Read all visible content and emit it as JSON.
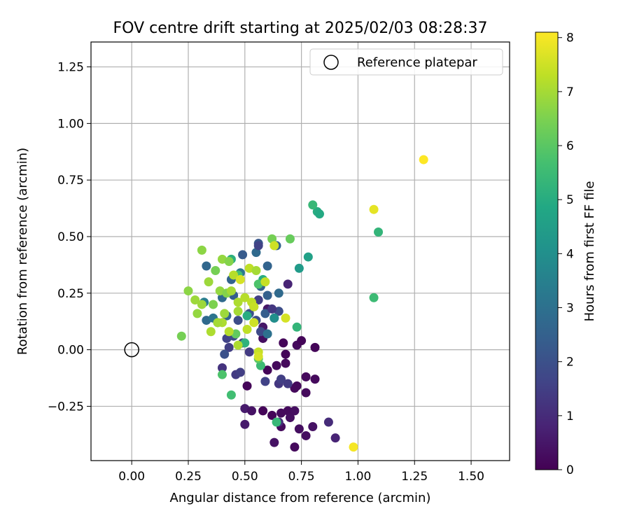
{
  "chart_data": {
    "type": "scatter",
    "title": "FOV centre drift starting at 2025/02/03 08:28:37",
    "xlabel": "Angular distance from reference (arcmin)",
    "ylabel": "Rotation from reference (arcmin)",
    "xlim": [
      -0.18,
      1.67
    ],
    "ylim": [
      -0.49,
      1.36
    ],
    "xticks": [
      "0.00",
      "0.25",
      "0.50",
      "0.75",
      "1.00",
      "1.25",
      "1.50"
    ],
    "xtick_values": [
      0,
      0.25,
      0.5,
      0.75,
      1.0,
      1.25,
      1.5
    ],
    "yticks": [
      "−0.25",
      "0.00",
      "0.25",
      "0.50",
      "0.75",
      "1.00",
      "1.25"
    ],
    "ytick_values": [
      -0.25,
      0,
      0.25,
      0.5,
      0.75,
      1.0,
      1.25
    ],
    "grid": true,
    "legend": {
      "placement": "top-right",
      "entries": [
        "Reference platepar"
      ]
    },
    "reference_point": {
      "x": 0,
      "y": 0
    },
    "colorbar": {
      "label": "Hours from first FF file",
      "range": [
        0,
        8.1
      ],
      "ticks": [
        "0",
        "1",
        "2",
        "3",
        "4",
        "5",
        "6",
        "7",
        "8"
      ],
      "tick_values": [
        0,
        1,
        2,
        3,
        4,
        5,
        6,
        7,
        8
      ],
      "colormap": "viridis"
    },
    "points": [
      {
        "x": 0.62,
        "y": -0.29,
        "h": 0.1
      },
      {
        "x": 0.58,
        "y": -0.27,
        "h": 0.1
      },
      {
        "x": 0.66,
        "y": -0.28,
        "h": 0.2
      },
      {
        "x": 0.69,
        "y": -0.27,
        "h": 0.2
      },
      {
        "x": 0.7,
        "y": -0.3,
        "h": 0.3
      },
      {
        "x": 0.72,
        "y": -0.27,
        "h": 0.3
      },
      {
        "x": 0.74,
        "y": -0.35,
        "h": 0.3
      },
      {
        "x": 0.66,
        "y": -0.34,
        "h": 0.2
      },
      {
        "x": 0.77,
        "y": -0.38,
        "h": 0.3
      },
      {
        "x": 0.72,
        "y": -0.43,
        "h": 0.2
      },
      {
        "x": 0.8,
        "y": -0.34,
        "h": 0.4
      },
      {
        "x": 0.63,
        "y": -0.41,
        "h": 0.4
      },
      {
        "x": 0.5,
        "y": -0.33,
        "h": 0.6
      },
      {
        "x": 0.5,
        "y": -0.26,
        "h": 0.6
      },
      {
        "x": 0.53,
        "y": -0.27,
        "h": 0.4
      },
      {
        "x": 0.51,
        "y": -0.16,
        "h": 0.1
      },
      {
        "x": 0.6,
        "y": -0.09,
        "h": 0.1
      },
      {
        "x": 0.64,
        "y": -0.07,
        "h": 0.2
      },
      {
        "x": 0.68,
        "y": -0.06,
        "h": 0.2
      },
      {
        "x": 0.68,
        "y": -0.02,
        "h": 0.1
      },
      {
        "x": 0.72,
        "y": -0.17,
        "h": 0.2
      },
      {
        "x": 0.73,
        "y": -0.16,
        "h": 0.2
      },
      {
        "x": 0.77,
        "y": -0.19,
        "h": 0.2
      },
      {
        "x": 0.77,
        "y": -0.12,
        "h": 0.2
      },
      {
        "x": 0.81,
        "y": -0.13,
        "h": 0.2
      },
      {
        "x": 0.73,
        "y": 0.02,
        "h": 0.2
      },
      {
        "x": 0.75,
        "y": 0.04,
        "h": 0.1
      },
      {
        "x": 0.81,
        "y": 0.01,
        "h": 0.1
      },
      {
        "x": 0.67,
        "y": 0.03,
        "h": 0.1
      },
      {
        "x": 0.58,
        "y": 0.05,
        "h": 0.3
      },
      {
        "x": 0.58,
        "y": 0.1,
        "h": 0.5
      },
      {
        "x": 0.6,
        "y": 0.18,
        "h": 0.5
      },
      {
        "x": 0.69,
        "y": 0.29,
        "h": 0.8
      },
      {
        "x": 0.87,
        "y": -0.32,
        "h": 1.0
      },
      {
        "x": 0.9,
        "y": -0.39,
        "h": 0.8
      },
      {
        "x": 0.65,
        "y": -0.15,
        "h": 1.3
      },
      {
        "x": 0.66,
        "y": -0.13,
        "h": 1.5
      },
      {
        "x": 0.69,
        "y": -0.15,
        "h": 1.4
      },
      {
        "x": 0.59,
        "y": -0.14,
        "h": 1.6
      },
      {
        "x": 0.65,
        "y": -0.32,
        "h": 1.0
      },
      {
        "x": 0.4,
        "y": -0.08,
        "h": 1.2
      },
      {
        "x": 0.46,
        "y": -0.11,
        "h": 1.4
      },
      {
        "x": 0.48,
        "y": -0.1,
        "h": 1.5
      },
      {
        "x": 0.52,
        "y": -0.01,
        "h": 1.4
      },
      {
        "x": 0.49,
        "y": 0.03,
        "h": 1.5
      },
      {
        "x": 0.43,
        "y": 0.01,
        "h": 1.5
      },
      {
        "x": 0.42,
        "y": 0.05,
        "h": 1.6
      },
      {
        "x": 0.41,
        "y": -0.02,
        "h": 2.0
      },
      {
        "x": 0.45,
        "y": 0.06,
        "h": 1.8
      },
      {
        "x": 0.47,
        "y": 0.13,
        "h": 1.9
      },
      {
        "x": 0.52,
        "y": 0.16,
        "h": 2.0
      },
      {
        "x": 0.55,
        "y": 0.13,
        "h": 1.9
      },
      {
        "x": 0.57,
        "y": 0.08,
        "h": 1.8
      },
      {
        "x": 0.6,
        "y": 0.07,
        "h": 3.0
      },
      {
        "x": 0.59,
        "y": 0.16,
        "h": 2.4
      },
      {
        "x": 0.63,
        "y": 0.14,
        "h": 2.0
      },
      {
        "x": 0.65,
        "y": 0.17,
        "h": 1.9
      },
      {
        "x": 0.62,
        "y": 0.18,
        "h": 1.3
      },
      {
        "x": 0.56,
        "y": 0.22,
        "h": 1.5
      },
      {
        "x": 0.54,
        "y": 0.19,
        "h": 1.7
      },
      {
        "x": 0.57,
        "y": 0.28,
        "h": 2.6
      },
      {
        "x": 0.6,
        "y": 0.24,
        "h": 2.5
      },
      {
        "x": 0.65,
        "y": 0.25,
        "h": 2.8
      },
      {
        "x": 0.6,
        "y": 0.37,
        "h": 2.6
      },
      {
        "x": 0.55,
        "y": 0.43,
        "h": 2.8
      },
      {
        "x": 0.56,
        "y": 0.47,
        "h": 2.2
      },
      {
        "x": 0.56,
        "y": 0.46,
        "h": 1.6
      },
      {
        "x": 0.49,
        "y": 0.42,
        "h": 2.3
      },
      {
        "x": 0.44,
        "y": 0.31,
        "h": 2.6
      },
      {
        "x": 0.48,
        "y": 0.34,
        "h": 3.2
      },
      {
        "x": 0.45,
        "y": 0.24,
        "h": 2.4
      },
      {
        "x": 0.4,
        "y": 0.23,
        "h": 2.8
      },
      {
        "x": 0.42,
        "y": 0.15,
        "h": 2.6
      },
      {
        "x": 0.38,
        "y": 0.12,
        "h": 2.6
      },
      {
        "x": 0.33,
        "y": 0.13,
        "h": 2.8
      },
      {
        "x": 0.33,
        "y": 0.37,
        "h": 2.7
      },
      {
        "x": 0.36,
        "y": 0.14,
        "h": 3.1
      },
      {
        "x": 0.32,
        "y": 0.21,
        "h": 3.4
      },
      {
        "x": 0.64,
        "y": 0.46,
        "h": 2.5
      },
      {
        "x": 0.74,
        "y": 0.36,
        "h": 4.4
      },
      {
        "x": 0.78,
        "y": 0.41,
        "h": 4.6
      },
      {
        "x": 0.73,
        "y": 0.1,
        "h": 5.3
      },
      {
        "x": 0.63,
        "y": 0.14,
        "h": 4.0
      },
      {
        "x": 0.51,
        "y": 0.15,
        "h": 5.0
      },
      {
        "x": 0.57,
        "y": -0.07,
        "h": 5.5
      },
      {
        "x": 0.64,
        "y": -0.32,
        "h": 5.4
      },
      {
        "x": 0.44,
        "y": -0.2,
        "h": 5.6
      },
      {
        "x": 0.4,
        "y": -0.11,
        "h": 5.8
      },
      {
        "x": 0.82,
        "y": 0.61,
        "h": 5.0
      },
      {
        "x": 0.83,
        "y": 0.6,
        "h": 4.9
      },
      {
        "x": 0.8,
        "y": 0.64,
        "h": 5.4
      },
      {
        "x": 1.09,
        "y": 0.52,
        "h": 5.3
      },
      {
        "x": 1.07,
        "y": 0.23,
        "h": 5.5
      },
      {
        "x": 0.44,
        "y": 0.4,
        "h": 5.1
      },
      {
        "x": 0.58,
        "y": 0.31,
        "h": 5.0
      },
      {
        "x": 0.56,
        "y": 0.29,
        "h": 5.8
      },
      {
        "x": 0.47,
        "y": 0.33,
        "h": 5.6
      },
      {
        "x": 0.5,
        "y": 0.03,
        "h": 5.2
      },
      {
        "x": 0.56,
        "y": -0.04,
        "h": 6.0
      },
      {
        "x": 0.62,
        "y": 0.49,
        "h": 6.4
      },
      {
        "x": 0.7,
        "y": 0.49,
        "h": 6.2
      },
      {
        "x": 0.46,
        "y": 0.07,
        "h": 6.1
      },
      {
        "x": 0.37,
        "y": 0.35,
        "h": 6.4
      },
      {
        "x": 0.31,
        "y": 0.44,
        "h": 6.7
      },
      {
        "x": 0.4,
        "y": 0.4,
        "h": 6.8
      },
      {
        "x": 0.43,
        "y": 0.39,
        "h": 6.6
      },
      {
        "x": 0.34,
        "y": 0.3,
        "h": 6.9
      },
      {
        "x": 0.25,
        "y": 0.26,
        "h": 6.7
      },
      {
        "x": 0.22,
        "y": 0.06,
        "h": 6.4
      },
      {
        "x": 0.28,
        "y": 0.22,
        "h": 6.9
      },
      {
        "x": 0.29,
        "y": 0.16,
        "h": 6.8
      },
      {
        "x": 0.31,
        "y": 0.2,
        "h": 6.9
      },
      {
        "x": 0.36,
        "y": 0.2,
        "h": 6.5
      },
      {
        "x": 0.39,
        "y": 0.26,
        "h": 6.8
      },
      {
        "x": 0.42,
        "y": 0.25,
        "h": 6.6
      },
      {
        "x": 0.44,
        "y": 0.26,
        "h": 7.0
      },
      {
        "x": 0.47,
        "y": 0.21,
        "h": 7.1
      },
      {
        "x": 0.5,
        "y": 0.23,
        "h": 7.2
      },
      {
        "x": 0.53,
        "y": 0.21,
        "h": 7.3
      },
      {
        "x": 0.54,
        "y": 0.19,
        "h": 7.4
      },
      {
        "x": 0.52,
        "y": 0.36,
        "h": 7.3
      },
      {
        "x": 0.55,
        "y": 0.35,
        "h": 7.0
      },
      {
        "x": 0.59,
        "y": 0.3,
        "h": 7.4
      },
      {
        "x": 0.45,
        "y": 0.33,
        "h": 7.2
      },
      {
        "x": 0.48,
        "y": 0.31,
        "h": 7.6
      },
      {
        "x": 0.47,
        "y": 0.17,
        "h": 7.0
      },
      {
        "x": 0.41,
        "y": 0.16,
        "h": 6.9
      },
      {
        "x": 0.4,
        "y": 0.12,
        "h": 7.1
      },
      {
        "x": 0.38,
        "y": 0.12,
        "h": 7.0
      },
      {
        "x": 0.35,
        "y": 0.08,
        "h": 7.1
      },
      {
        "x": 0.43,
        "y": 0.08,
        "h": 7.2
      },
      {
        "x": 0.47,
        "y": 0.02,
        "h": 7.1
      },
      {
        "x": 0.51,
        "y": 0.09,
        "h": 7.3
      },
      {
        "x": 0.54,
        "y": 0.12,
        "h": 7.5
      },
      {
        "x": 0.56,
        "y": -0.01,
        "h": 7.4
      },
      {
        "x": 0.56,
        "y": -0.03,
        "h": 7.6
      },
      {
        "x": 0.63,
        "y": 0.46,
        "h": 7.5
      },
      {
        "x": 0.68,
        "y": 0.14,
        "h": 7.6
      },
      {
        "x": 1.07,
        "y": 0.62,
        "h": 7.8
      },
      {
        "x": 1.29,
        "y": 0.84,
        "h": 8.1
      },
      {
        "x": 0.98,
        "y": -0.43,
        "h": 8.0
      }
    ]
  }
}
